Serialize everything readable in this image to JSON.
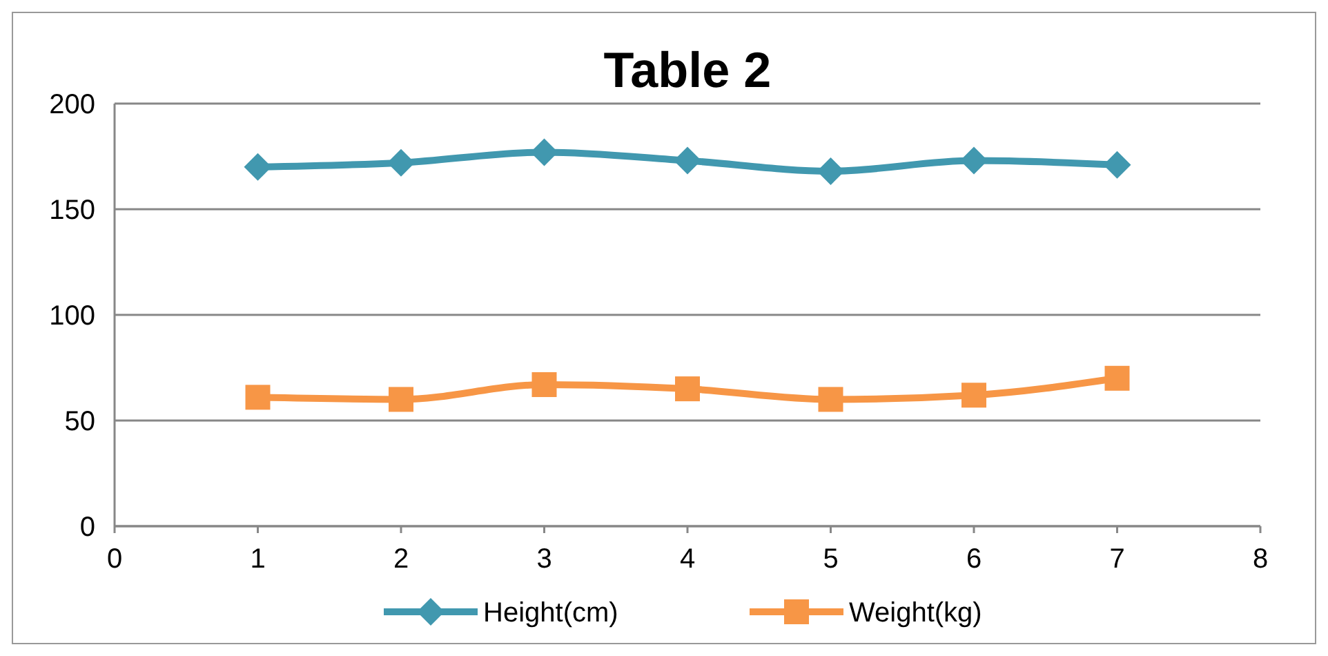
{
  "chart_data": {
    "type": "line",
    "title": "Table 2",
    "x": [
      1,
      2,
      3,
      4,
      5,
      6,
      7
    ],
    "xlim": [
      0,
      8
    ],
    "xticks": [
      0,
      1,
      2,
      3,
      4,
      5,
      6,
      7,
      8
    ],
    "ylim": [
      0,
      200
    ],
    "yticks": [
      0,
      50,
      100,
      150,
      200
    ],
    "grid": "y",
    "legend": "bottom",
    "series": [
      {
        "name": "Height(cm)",
        "color": "#4198af",
        "marker": "diamond",
        "values": [
          170,
          172,
          177,
          173,
          168,
          173,
          171
        ]
      },
      {
        "name": "Weight(kg)",
        "color": "#f79646",
        "marker": "square",
        "values": [
          61,
          60,
          67,
          65,
          60,
          62,
          70
        ]
      }
    ]
  }
}
